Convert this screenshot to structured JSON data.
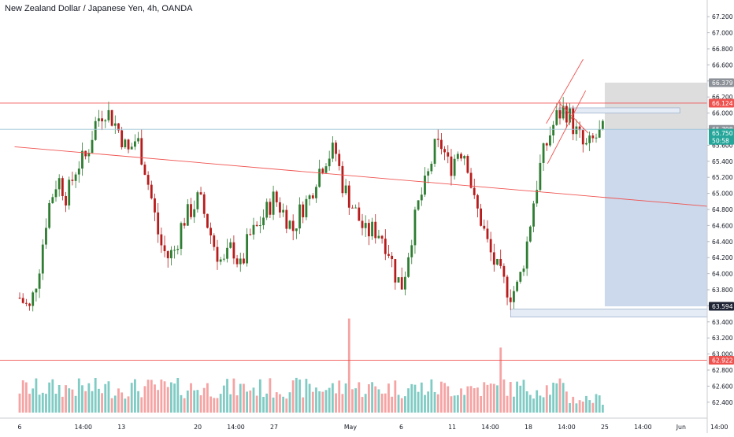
{
  "header": {
    "title": "New Zealand Dollar / Japanese Yen, 4h, OANDA"
  },
  "colors": {
    "up": "#26a69a",
    "down": "#ef5350",
    "candle_up": "#2e7d32",
    "candle_down": "#b71c1c",
    "vol_up": "#80cbc4",
    "vol_down": "#f5a3a3",
    "level_line": "#ef5350",
    "trend_line": "#ef5350",
    "profit_zone": "#c9d6ea",
    "loss_zone": "#d9d9d9",
    "axis_text": "#131722",
    "grid": "#eef0f3"
  },
  "chart_data": {
    "type": "candlestick",
    "symbol": "New Zealand Dollar / Japanese Yen",
    "timeframe": "4h",
    "source": "OANDA",
    "ylim": [
      62.3,
      67.3
    ],
    "y_ticks": [
      "67.200",
      "67.000",
      "66.800",
      "66.600",
      "66.400",
      "66.200",
      "66.000",
      "65.800",
      "65.600",
      "65.400",
      "65.200",
      "65.000",
      "64.800",
      "64.600",
      "64.400",
      "64.200",
      "64.000",
      "63.800",
      "63.600",
      "63.400",
      "63.200",
      "63.000",
      "62.800",
      "62.600",
      "62.400"
    ],
    "x_ticks": [
      {
        "label": "6",
        "x": 0.0
      },
      {
        "label": "14:00",
        "x": 2.5
      },
      {
        "label": "13",
        "x": 4.0
      },
      {
        "label": "20",
        "x": 7.0
      },
      {
        "label": "14:00",
        "x": 8.5
      },
      {
        "label": "27",
        "x": 10.0
      },
      {
        "label": "May",
        "x": 13.0
      },
      {
        "label": "6",
        "x": 15.0
      },
      {
        "label": "11",
        "x": 17.0
      },
      {
        "label": "14:00",
        "x": 18.5
      },
      {
        "label": "18",
        "x": 20.0
      },
      {
        "label": "14:00",
        "x": 21.5
      },
      {
        "label": "25",
        "x": 23.0
      },
      {
        "label": "14:00",
        "x": 24.5
      },
      {
        "label": "Jun",
        "x": 26.0
      },
      {
        "label": "14:00",
        "x": 27.5
      }
    ],
    "price_labels": [
      {
        "value": 66.379,
        "text": "66.379",
        "style": "grey"
      },
      {
        "value": 66.124,
        "text": "66.124",
        "style": "red"
      },
      {
        "value": 65.798,
        "text": "65.798",
        "style": "grey"
      },
      {
        "value": 65.75,
        "text": "65.750",
        "style": "green"
      },
      {
        "value": 65.66,
        "text": "50:58",
        "style": "green"
      },
      {
        "value": 63.594,
        "text": "63.594",
        "style": "dark"
      },
      {
        "value": 62.922,
        "text": "62.922",
        "style": "red"
      }
    ],
    "horizontal_levels": [
      66.124,
      62.922
    ],
    "current_price_line": 65.798,
    "trend_lines": [
      {
        "from": [
          -0.2,
          65.58
        ],
        "to": [
          28.5,
          64.8
        ]
      },
      {
        "from": [
          20.7,
          65.87
        ],
        "to": [
          22.15,
          66.67
        ]
      },
      {
        "from": [
          20.75,
          65.37
        ],
        "to": [
          22.25,
          66.28
        ]
      },
      {
        "from": [
          21.2,
          66.13
        ],
        "to": [
          22.35,
          65.75
        ]
      }
    ],
    "position_zone": {
      "x_start": 23.0,
      "x_end": 28.5,
      "entry": 65.798,
      "stop": 66.379,
      "target": 63.594
    },
    "zones": [
      {
        "x0": 21.2,
        "x1": 25.95,
        "y_top": 66.065,
        "y_bottom": 66.0
      },
      {
        "x0": 19.3,
        "x1": 27.95,
        "y_top": 63.56,
        "y_bottom": 63.46
      }
    ],
    "close_path": [
      [
        0.0,
        63.7
      ],
      [
        0.4,
        63.55
      ],
      [
        0.75,
        64.05
      ],
      [
        1.1,
        64.8
      ],
      [
        1.5,
        65.2
      ],
      [
        1.85,
        64.95
      ],
      [
        2.25,
        65.35
      ],
      [
        2.6,
        65.45
      ],
      [
        3.0,
        65.9
      ],
      [
        3.35,
        66.05
      ],
      [
        3.6,
        65.95
      ],
      [
        3.95,
        65.75
      ],
      [
        4.25,
        65.5
      ],
      [
        4.6,
        65.7
      ],
      [
        4.9,
        65.35
      ],
      [
        5.2,
        64.9
      ],
      [
        5.5,
        64.4
      ],
      [
        5.8,
        64.2
      ],
      [
        6.1,
        64.3
      ],
      [
        6.4,
        64.65
      ],
      [
        6.75,
        64.8
      ],
      [
        7.05,
        64.95
      ],
      [
        7.4,
        64.6
      ],
      [
        7.7,
        64.3
      ],
      [
        8.0,
        64.1
      ],
      [
        8.35,
        64.35
      ],
      [
        8.7,
        64.05
      ],
      [
        9.0,
        64.45
      ],
      [
        9.3,
        64.55
      ],
      [
        9.65,
        64.75
      ],
      [
        10.0,
        64.95
      ],
      [
        10.4,
        64.75
      ],
      [
        10.75,
        64.55
      ],
      [
        11.05,
        64.8
      ],
      [
        11.4,
        64.95
      ],
      [
        11.7,
        65.25
      ],
      [
        12.05,
        65.45
      ],
      [
        12.4,
        65.55
      ],
      [
        12.7,
        65.1
      ],
      [
        13.0,
        64.9
      ],
      [
        13.3,
        64.7
      ],
      [
        13.6,
        64.5
      ],
      [
        13.9,
        64.55
      ],
      [
        14.2,
        64.5
      ],
      [
        14.5,
        64.3
      ],
      [
        14.8,
        63.95
      ],
      [
        15.05,
        63.85
      ],
      [
        15.35,
        64.4
      ],
      [
        15.7,
        64.9
      ],
      [
        16.0,
        65.15
      ],
      [
        16.3,
        65.55
      ],
      [
        16.6,
        65.6
      ],
      [
        16.9,
        65.3
      ],
      [
        17.25,
        65.55
      ],
      [
        17.55,
        65.5
      ],
      [
        17.85,
        64.9
      ],
      [
        18.15,
        64.65
      ],
      [
        18.45,
        64.3
      ],
      [
        18.7,
        64.1
      ],
      [
        19.0,
        63.9
      ],
      [
        19.3,
        63.75
      ],
      [
        19.6,
        63.85
      ],
      [
        19.9,
        64.3
      ],
      [
        20.2,
        64.9
      ],
      [
        20.5,
        65.4
      ],
      [
        20.8,
        65.7
      ],
      [
        21.1,
        65.95
      ],
      [
        21.4,
        66.05
      ],
      [
        21.6,
        65.98
      ],
      [
        21.8,
        65.8
      ],
      [
        22.0,
        65.7
      ],
      [
        22.2,
        65.55
      ],
      [
        22.4,
        65.6
      ],
      [
        22.6,
        65.68
      ],
      [
        22.85,
        65.75
      ],
      [
        23.0,
        65.79
      ]
    ],
    "volume_ylim": [
      0,
      400
    ],
    "volume_spikes": [
      {
        "x": 13.0,
        "value": 405
      },
      {
        "x": 18.85,
        "value": 280
      }
    ]
  }
}
